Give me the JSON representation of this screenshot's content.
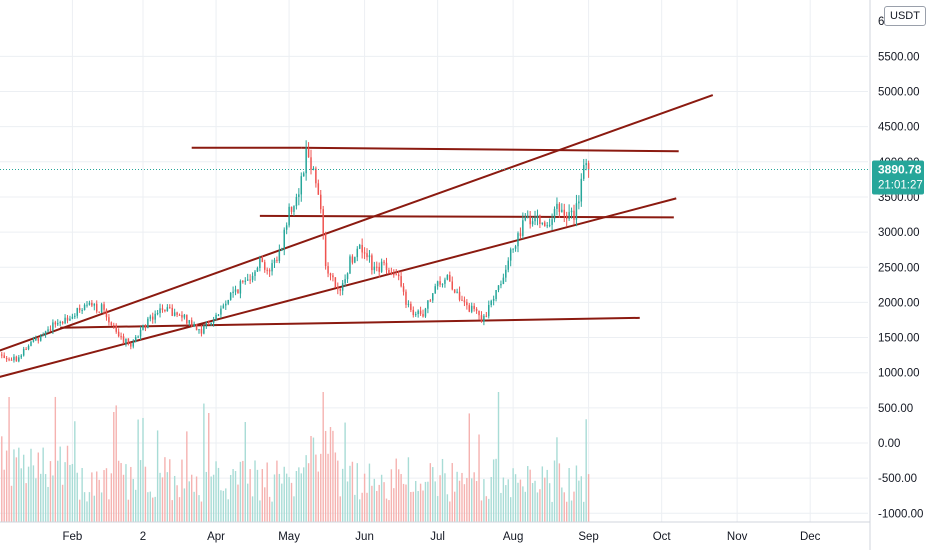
{
  "chart_data": {
    "type": "candlestick",
    "currency": "USDT",
    "y_ticks": [
      "5500.00",
      "5000.00",
      "4500.00",
      "4000.00",
      "3500.00",
      "3000.00",
      "2500.00",
      "2000.00",
      "1500.00",
      "1000.00",
      "500.00",
      "0.00",
      "-500.00",
      "-1000.00"
    ],
    "y_top_partial": "6",
    "ylim": [
      -1000,
      6300
    ],
    "x_ticks": [
      {
        "label": "Feb",
        "day": 31
      },
      {
        "label": "2",
        "day": 60
      },
      {
        "label": "Apr",
        "day": 90
      },
      {
        "label": "May",
        "day": 120
      },
      {
        "label": "Jun",
        "day": 151
      },
      {
        "label": "Jul",
        "day": 181
      },
      {
        "label": "Aug",
        "day": 212
      },
      {
        "label": "Sep",
        "day": 243
      },
      {
        "label": "Oct",
        "day": 273
      },
      {
        "label": "Nov",
        "day": 304
      },
      {
        "label": "Dec",
        "day": 334
      }
    ],
    "last_price": {
      "value": 3890.78,
      "label": "3890.78",
      "countdown": "21:01:27"
    },
    "colors": {
      "up": "#26a69a",
      "down": "#ef5350",
      "trendline": "#8b1a10",
      "price_line": "#26a69a"
    },
    "price_anchors": [
      [
        1,
        1250
      ],
      [
        8,
        1200
      ],
      [
        15,
        1450
      ],
      [
        22,
        1650
      ],
      [
        30,
        1800
      ],
      [
        38,
        1950
      ],
      [
        44,
        1900
      ],
      [
        50,
        1500
      ],
      [
        55,
        1400
      ],
      [
        60,
        1650
      ],
      [
        66,
        1900
      ],
      [
        72,
        1850
      ],
      [
        78,
        1750
      ],
      [
        84,
        1600
      ],
      [
        90,
        1800
      ],
      [
        96,
        2100
      ],
      [
        102,
        2300
      ],
      [
        108,
        2600
      ],
      [
        112,
        2450
      ],
      [
        116,
        2700
      ],
      [
        120,
        3300
      ],
      [
        124,
        3600
      ],
      [
        127,
        4150
      ],
      [
        130,
        3900
      ],
      [
        133,
        3400
      ],
      [
        135,
        2500
      ],
      [
        138,
        2300
      ],
      [
        141,
        2100
      ],
      [
        145,
        2600
      ],
      [
        150,
        2800
      ],
      [
        155,
        2450
      ],
      [
        160,
        2550
      ],
      [
        165,
        2300
      ],
      [
        170,
        1850
      ],
      [
        175,
        1800
      ],
      [
        180,
        2200
      ],
      [
        185,
        2400
      ],
      [
        190,
        2000
      ],
      [
        195,
        1900
      ],
      [
        200,
        1750
      ],
      [
        205,
        2200
      ],
      [
        210,
        2550
      ],
      [
        214,
        3000
      ],
      [
        218,
        3200
      ],
      [
        222,
        3250
      ],
      [
        226,
        3100
      ],
      [
        230,
        3300
      ],
      [
        234,
        3200
      ],
      [
        238,
        3300
      ],
      [
        241,
        3900
      ],
      [
        243,
        3890.78
      ]
    ],
    "trendlines": [
      {
        "x": [
          0,
          294
        ],
        "y": [
          1300,
          4950
        ]
      },
      {
        "x": [
          0,
          279
        ],
        "y": [
          930,
          3480
        ]
      },
      {
        "x": [
          80,
          125
        ],
        "y": [
          4200,
          4200
        ]
      },
      {
        "x": [
          125,
          280
        ],
        "y": [
          4200,
          4150
        ]
      },
      {
        "x": [
          108,
          278
        ],
        "y": [
          3230,
          3210
        ]
      },
      {
        "x": [
          26,
          264
        ],
        "y": [
          1640,
          1780
        ]
      }
    ]
  }
}
